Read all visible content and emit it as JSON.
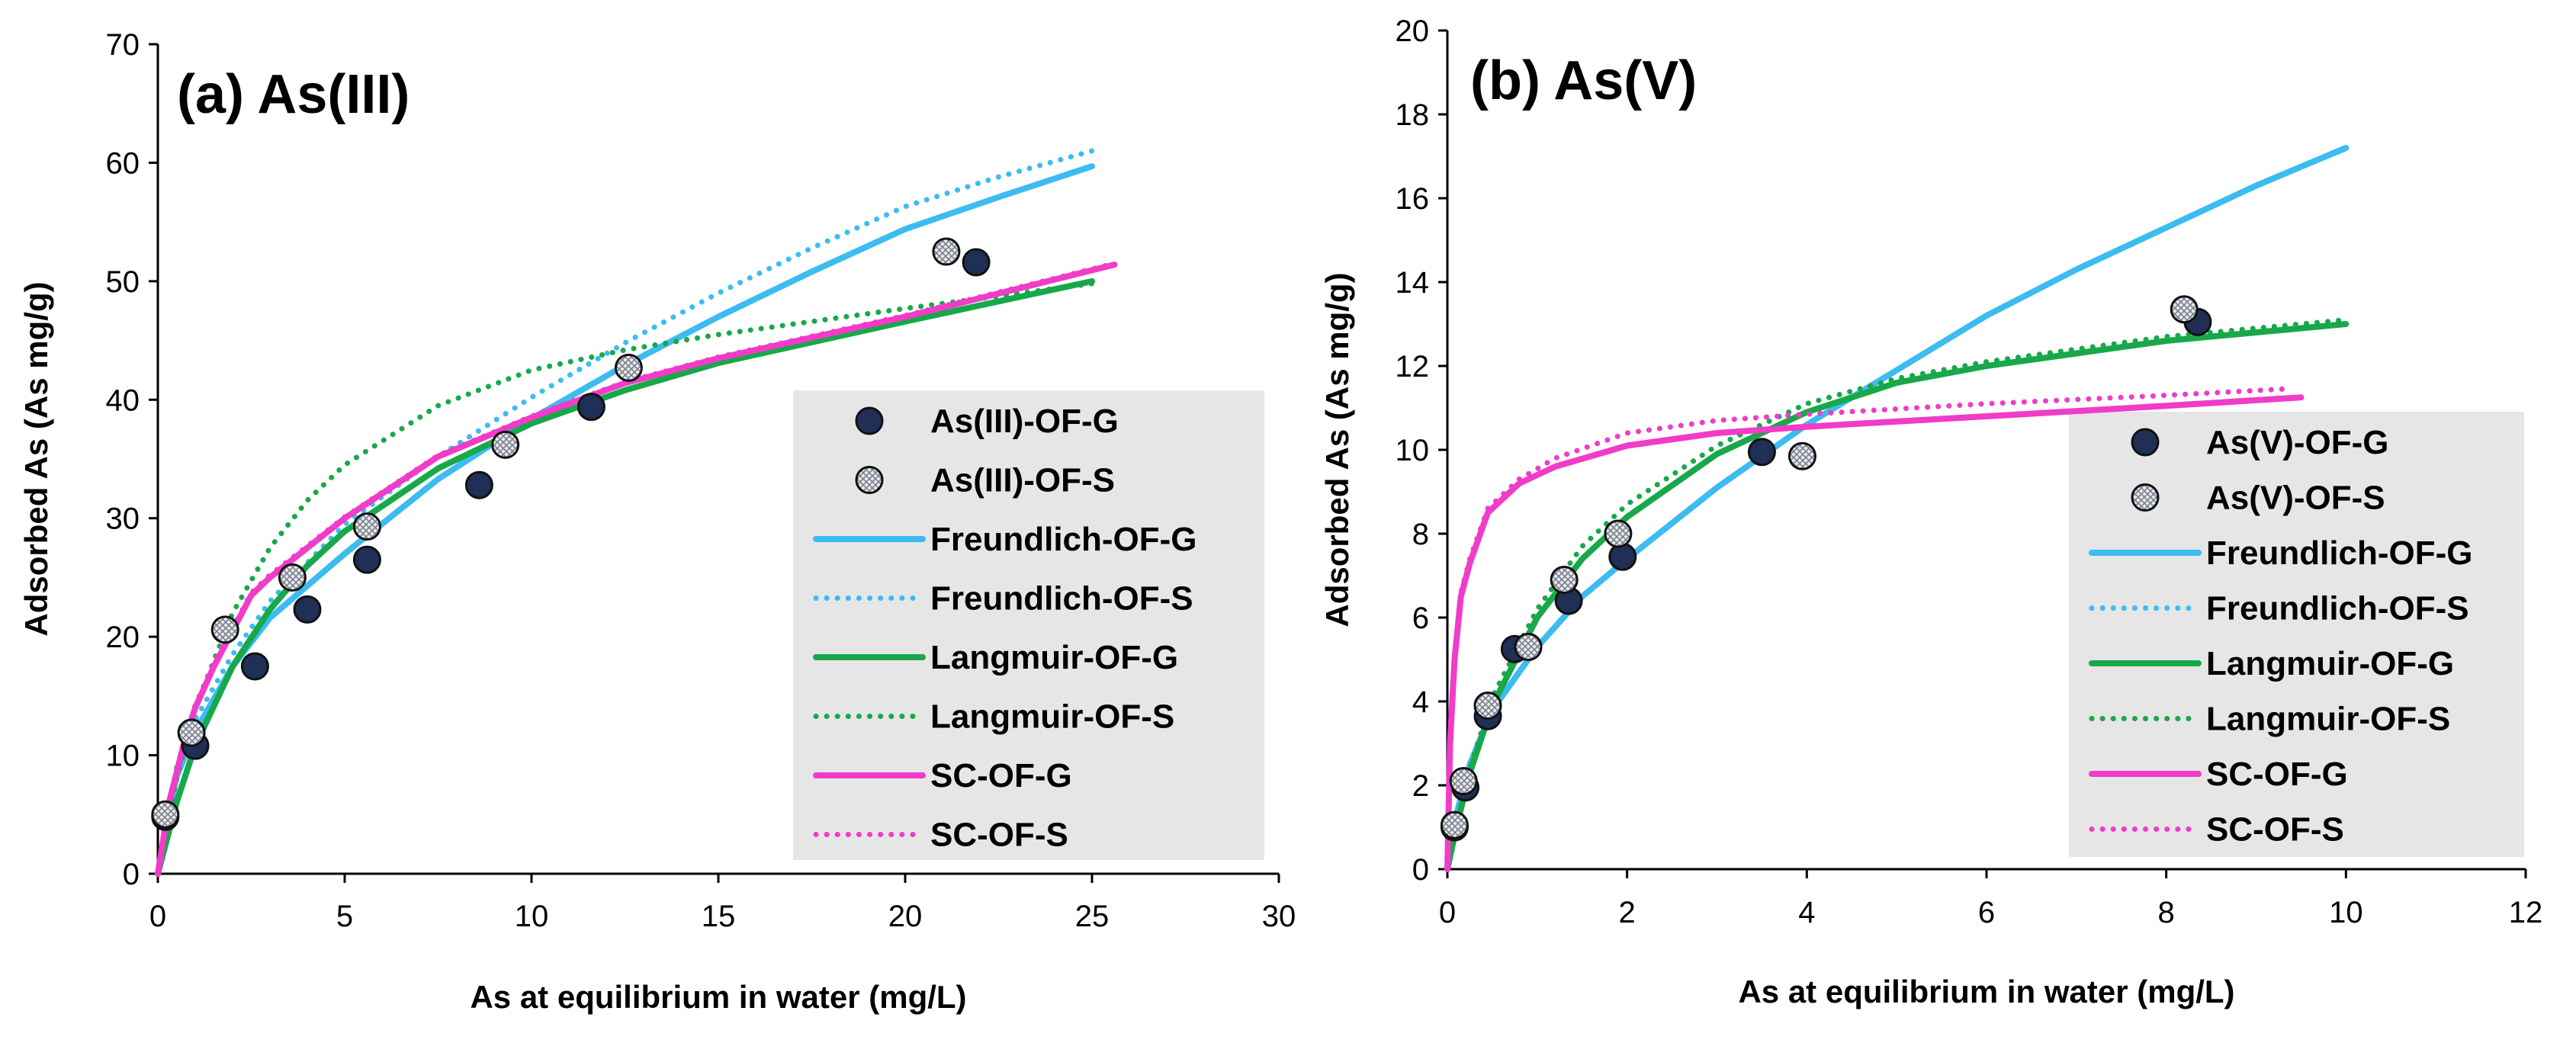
{
  "chart_data": [
    {
      "type": "scatter",
      "title": "(a) As(III)",
      "xlabel": "As at equilibrium in water (mg/L)",
      "ylabel": "Adsorbed As (As mg/g)",
      "xlim": [
        0,
        30
      ],
      "ylim": [
        0,
        70
      ],
      "xticks": [
        "0",
        "5",
        "10",
        "15",
        "20",
        "25",
        "30"
      ],
      "yticks": [
        "0",
        "10",
        "20",
        "30",
        "40",
        "50",
        "60",
        "70"
      ],
      "legend_position": "right",
      "series": [
        {
          "name": "As(III)-OF-G",
          "kind": "marker",
          "color": "#1f2f55",
          "x": [
            0.2,
            1.0,
            2.6,
            4.0,
            5.6,
            8.6,
            11.6,
            21.9
          ],
          "y": [
            4.8,
            10.8,
            17.5,
            22.3,
            26.5,
            32.8,
            39.4,
            51.6
          ]
        },
        {
          "name": "As(III)-OF-S",
          "kind": "marker-hatched",
          "color": "#c8ccd4",
          "x": [
            0.2,
            0.9,
            1.8,
            3.6,
            5.6,
            9.3,
            12.6,
            21.1
          ],
          "y": [
            5.0,
            11.9,
            20.6,
            25.0,
            29.3,
            36.2,
            42.7,
            52.5
          ]
        },
        {
          "name": "Freundlich-OF-G",
          "kind": "solid",
          "color": "#3cbcf0",
          "x": [
            0,
            0.5,
            1,
            2,
            3,
            5,
            7.5,
            10,
            12.5,
            15,
            17.5,
            20,
            22.5,
            25
          ],
          "y": [
            0,
            8.2,
            12.0,
            17.5,
            21.6,
            27.0,
            33.3,
            38.4,
            42.9,
            47.0,
            50.8,
            54.4,
            57.1,
            59.7
          ]
        },
        {
          "name": "Freundlich-OF-S",
          "kind": "dotted",
          "color": "#3cbcf0",
          "x": [
            0,
            0.5,
            1,
            2,
            3,
            5,
            7.5,
            10,
            12.5,
            15,
            17.5,
            20,
            22.5,
            25
          ],
          "y": [
            0,
            9.0,
            13.0,
            18.5,
            23.0,
            29.5,
            35.2,
            40.2,
            44.8,
            49.0,
            52.8,
            56.3,
            58.8,
            61.0
          ]
        },
        {
          "name": "Langmuir-OF-G",
          "kind": "solid",
          "color": "#18a84a",
          "x": [
            0,
            0.5,
            1,
            2,
            3,
            4,
            5,
            7.5,
            10,
            12.5,
            15,
            20,
            25
          ],
          "y": [
            0,
            6.0,
            10.8,
            17.5,
            22.3,
            26.0,
            28.9,
            34.2,
            38.0,
            40.8,
            43.1,
            46.6,
            50.0
          ]
        },
        {
          "name": "Langmuir-OF-S",
          "kind": "dotted",
          "color": "#18a84a",
          "x": [
            0,
            0.5,
            1,
            2,
            3,
            4,
            5,
            7.5,
            10,
            12.5,
            15,
            20,
            25
          ],
          "y": [
            0,
            8.0,
            14.0,
            22.0,
            27.5,
            31.5,
            34.5,
            39.5,
            42.5,
            44.2,
            45.5,
            47.7,
            49.8
          ]
        },
        {
          "name": "SC-OF-G",
          "kind": "solid",
          "color": "#f03cc8",
          "x": [
            0,
            0.3,
            0.7,
            1.0,
            1.5,
            2.0,
            2.5,
            3.0,
            5.0,
            7.5,
            10,
            12.5,
            15,
            20,
            25.6
          ],
          "y": [
            0,
            6.0,
            11.0,
            14.0,
            17.5,
            20.5,
            23.5,
            25.0,
            30.0,
            35.2,
            38.5,
            41.4,
            43.5,
            47.0,
            51.4
          ]
        },
        {
          "name": "SC-OF-S",
          "kind": "dotted",
          "color": "#f03cc8",
          "x": [
            0,
            0.3,
            0.7,
            1.0,
            1.5,
            2.0,
            2.5,
            3.0,
            5.0,
            7.5,
            10,
            12.5,
            15,
            20,
            25.6
          ],
          "y": [
            0,
            6.2,
            11.2,
            14.2,
            17.8,
            20.7,
            23.7,
            25.2,
            30.1,
            35.3,
            38.6,
            41.5,
            43.6,
            47.1,
            51.5
          ]
        }
      ]
    },
    {
      "type": "scatter",
      "title": "(b) As(V)",
      "xlabel": "As at equilibrium in water  (mg/L)",
      "ylabel": "Adsorbed As (As mg/g)",
      "xlim": [
        0,
        12
      ],
      "ylim": [
        0,
        20
      ],
      "xticks": [
        "0",
        "2",
        "4",
        "6",
        "8",
        "10",
        "12"
      ],
      "yticks": [
        "0",
        "2",
        "4",
        "6",
        "8",
        "10",
        "12",
        "14",
        "16",
        "18",
        "20"
      ],
      "legend_position": "right",
      "series": [
        {
          "name": "As(V)-OF-G",
          "kind": "marker",
          "color": "#1f2f55",
          "x": [
            0.08,
            0.2,
            0.45,
            0.75,
            1.35,
            1.95,
            3.5,
            8.35
          ],
          "y": [
            1.0,
            1.95,
            3.65,
            5.25,
            6.4,
            7.45,
            9.95,
            13.05
          ]
        },
        {
          "name": "As(V)-OF-S",
          "kind": "marker-hatched",
          "color": "#c8ccd4",
          "x": [
            0.08,
            0.18,
            0.45,
            0.9,
            1.3,
            1.9,
            3.95,
            8.2
          ],
          "y": [
            1.05,
            2.1,
            3.9,
            5.3,
            6.9,
            8.0,
            9.85,
            13.35
          ]
        },
        {
          "name": "Freundlich-OF-G",
          "kind": "solid",
          "color": "#3cbcf0",
          "x": [
            0,
            0.1,
            0.25,
            0.5,
            1,
            1.5,
            2,
            3,
            4,
            5,
            6,
            7,
            8,
            9,
            10
          ],
          "y": [
            0,
            1.3,
            2.5,
            3.8,
            5.3,
            6.5,
            7.4,
            9.1,
            10.6,
            11.9,
            13.2,
            14.3,
            15.3,
            16.3,
            17.2
          ]
        },
        {
          "name": "Freundlich-OF-S",
          "kind": "dotted",
          "color": "#3cbcf0",
          "x": [
            0,
            0.1,
            0.25,
            0.5,
            1,
            1.5,
            2,
            3,
            4,
            5,
            6,
            7,
            8,
            9,
            10
          ],
          "y": [
            0,
            1.3,
            2.5,
            3.8,
            5.3,
            6.5,
            7.4,
            9.1,
            10.6,
            11.9,
            13.2,
            14.3,
            15.3,
            16.3,
            17.2
          ]
        },
        {
          "name": "Langmuir-OF-G",
          "kind": "solid",
          "color": "#18a84a",
          "x": [
            0,
            0.1,
            0.25,
            0.5,
            1,
            1.5,
            2,
            3,
            4,
            5,
            6,
            7,
            8,
            9,
            10
          ],
          "y": [
            0,
            1.0,
            2.3,
            3.9,
            6.0,
            7.4,
            8.4,
            9.9,
            10.9,
            11.6,
            12.0,
            12.3,
            12.6,
            12.8,
            13.0
          ]
        },
        {
          "name": "Langmuir-OF-S",
          "kind": "dotted",
          "color": "#18a84a",
          "x": [
            0,
            0.1,
            0.25,
            0.5,
            1,
            1.5,
            2,
            3,
            4,
            5,
            6,
            7,
            8,
            9,
            10
          ],
          "y": [
            0,
            1.1,
            2.4,
            4.1,
            6.2,
            7.7,
            8.7,
            10.1,
            11.1,
            11.7,
            12.1,
            12.4,
            12.7,
            12.9,
            13.1
          ]
        },
        {
          "name": "SC-OF-G",
          "kind": "solid",
          "color": "#f03cc8",
          "x": [
            0,
            0.03,
            0.08,
            0.15,
            0.25,
            0.45,
            0.8,
            1.2,
            2,
            3,
            4,
            6,
            8,
            9.5
          ],
          "y": [
            0,
            3.0,
            5.0,
            6.5,
            7.3,
            8.5,
            9.2,
            9.6,
            10.1,
            10.4,
            10.55,
            10.8,
            11.05,
            11.25
          ]
        },
        {
          "name": "SC-OF-S",
          "kind": "dotted",
          "color": "#f03cc8",
          "x": [
            0,
            0.03,
            0.08,
            0.15,
            0.25,
            0.45,
            0.8,
            1.2,
            2,
            3,
            4,
            6,
            8,
            9.3
          ],
          "y": [
            0,
            3.1,
            5.1,
            6.6,
            7.4,
            8.6,
            9.3,
            9.8,
            10.4,
            10.7,
            10.85,
            11.1,
            11.3,
            11.45
          ]
        }
      ]
    }
  ]
}
